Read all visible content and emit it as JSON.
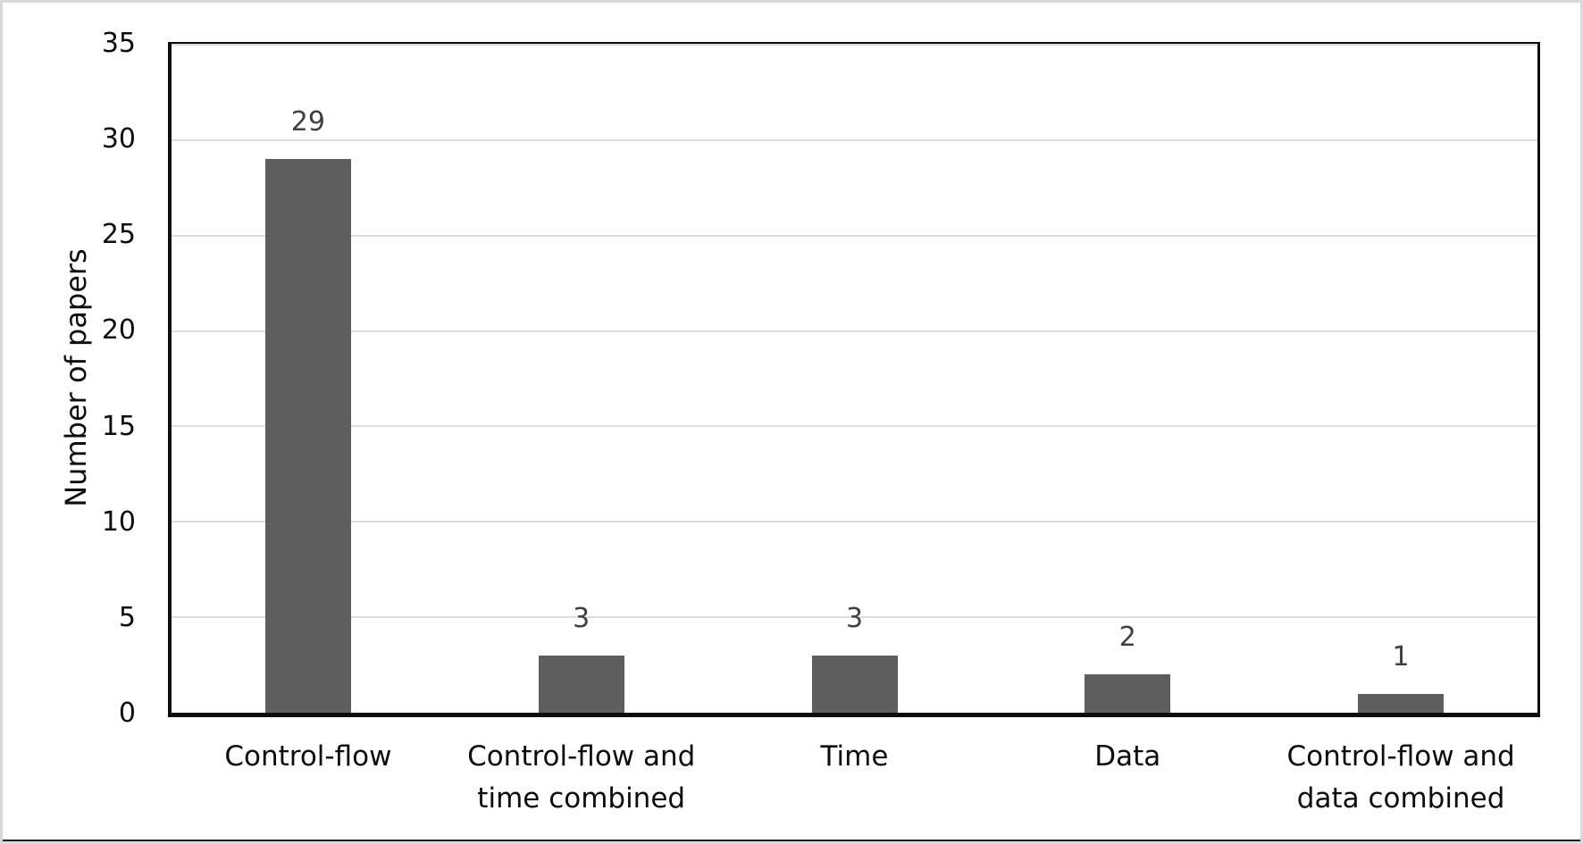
{
  "figure": {
    "background": "#ffffff",
    "outer_border_color": "#d9d9d9",
    "outer_bottom_edge_color": "#1d1d1d"
  },
  "chart_data": {
    "type": "bar",
    "title": "",
    "categories": [
      "Control-flow",
      "Control-flow and\ntime combined",
      "Time",
      "Data",
      "Control-flow and\ndata combined"
    ],
    "values": [
      29,
      3,
      3,
      2,
      1
    ],
    "xlabel": "",
    "ylabel": "Number of papers",
    "ylim": [
      0,
      35
    ],
    "yticks": [
      0,
      5,
      10,
      15,
      20,
      25,
      30,
      35
    ],
    "grid": "horizontal",
    "legend": "none",
    "bar_color": "#5e5e5e",
    "gridline_color": "#dcdcdc",
    "axis_color": "#0d0d0d",
    "data_label_color": "#404040",
    "text_color": "#0d0d0d"
  }
}
